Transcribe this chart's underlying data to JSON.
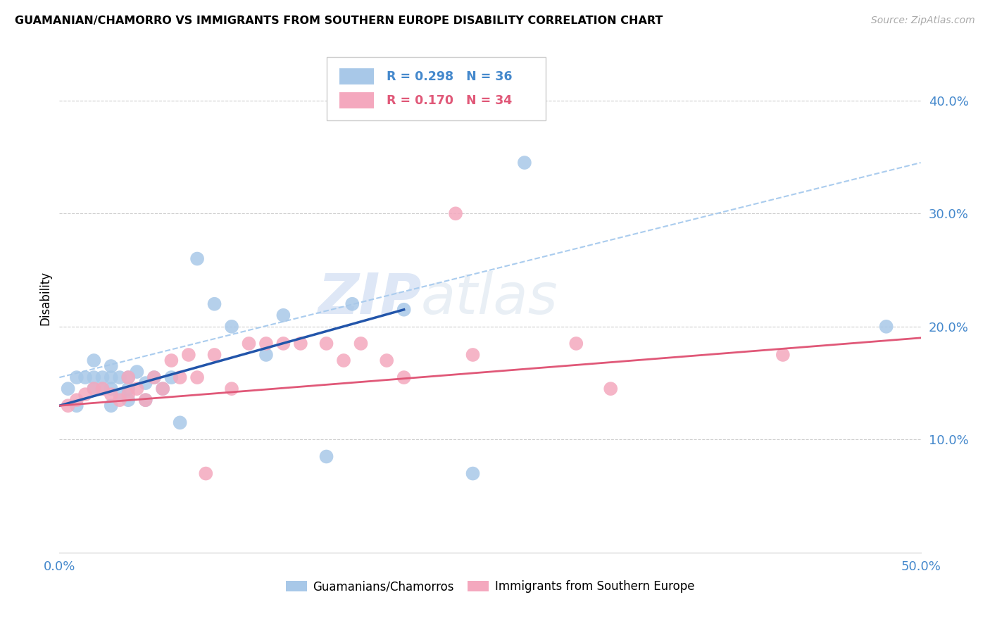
{
  "title": "GUAMANIAN/CHAMORRO VS IMMIGRANTS FROM SOUTHERN EUROPE DISABILITY CORRELATION CHART",
  "source": "Source: ZipAtlas.com",
  "ylabel": "Disability",
  "xlim": [
    0.0,
    0.5
  ],
  "ylim": [
    0.0,
    0.45
  ],
  "xticks": [
    0.0,
    0.1,
    0.2,
    0.3,
    0.4,
    0.5
  ],
  "yticks": [
    0.1,
    0.2,
    0.3,
    0.4
  ],
  "xticklabels": [
    "0.0%",
    "",
    "",
    "",
    "",
    "50.0%"
  ],
  "yticklabels": [
    "10.0%",
    "20.0%",
    "30.0%",
    "40.0%"
  ],
  "blue_label": "Guamanians/Chamorros",
  "pink_label": "Immigrants from Southern Europe",
  "blue_R": "0.298",
  "blue_N": "36",
  "pink_R": "0.170",
  "pink_N": "34",
  "blue_color": "#a8c8e8",
  "pink_color": "#f4a8be",
  "blue_line_color": "#2255aa",
  "pink_line_color": "#e05878",
  "dashed_line_color": "#aaccee",
  "watermark_zip": "ZIP",
  "watermark_atlas": "atlas",
  "background_color": "#ffffff",
  "grid_color": "#cccccc",
  "tick_color": "#4488cc",
  "blue_x": [
    0.005,
    0.01,
    0.01,
    0.015,
    0.02,
    0.02,
    0.02,
    0.025,
    0.025,
    0.03,
    0.03,
    0.03,
    0.03,
    0.035,
    0.035,
    0.04,
    0.04,
    0.04,
    0.045,
    0.05,
    0.05,
    0.055,
    0.06,
    0.065,
    0.07,
    0.08,
    0.09,
    0.1,
    0.12,
    0.13,
    0.155,
    0.17,
    0.2,
    0.24,
    0.27,
    0.48
  ],
  "blue_y": [
    0.145,
    0.13,
    0.155,
    0.155,
    0.145,
    0.155,
    0.17,
    0.145,
    0.155,
    0.13,
    0.145,
    0.155,
    0.165,
    0.14,
    0.155,
    0.135,
    0.145,
    0.155,
    0.16,
    0.135,
    0.15,
    0.155,
    0.145,
    0.155,
    0.115,
    0.26,
    0.22,
    0.2,
    0.175,
    0.21,
    0.085,
    0.22,
    0.215,
    0.07,
    0.345,
    0.2
  ],
  "pink_x": [
    0.005,
    0.01,
    0.015,
    0.02,
    0.025,
    0.03,
    0.035,
    0.04,
    0.04,
    0.045,
    0.05,
    0.055,
    0.06,
    0.065,
    0.07,
    0.075,
    0.08,
    0.09,
    0.1,
    0.11,
    0.12,
    0.13,
    0.14,
    0.155,
    0.165,
    0.175,
    0.19,
    0.2,
    0.23,
    0.24,
    0.3,
    0.32,
    0.085,
    0.42
  ],
  "pink_y": [
    0.13,
    0.135,
    0.14,
    0.145,
    0.145,
    0.14,
    0.135,
    0.14,
    0.155,
    0.145,
    0.135,
    0.155,
    0.145,
    0.17,
    0.155,
    0.175,
    0.155,
    0.175,
    0.145,
    0.185,
    0.185,
    0.185,
    0.185,
    0.185,
    0.17,
    0.185,
    0.17,
    0.155,
    0.3,
    0.175,
    0.185,
    0.145,
    0.07,
    0.175
  ],
  "blue_line_x": [
    0.0,
    0.2
  ],
  "blue_line_y": [
    0.13,
    0.215
  ],
  "pink_line_x": [
    0.0,
    0.5
  ],
  "pink_line_y": [
    0.13,
    0.19
  ],
  "dashed_line_x": [
    0.0,
    0.5
  ],
  "dashed_line_y": [
    0.155,
    0.345
  ]
}
